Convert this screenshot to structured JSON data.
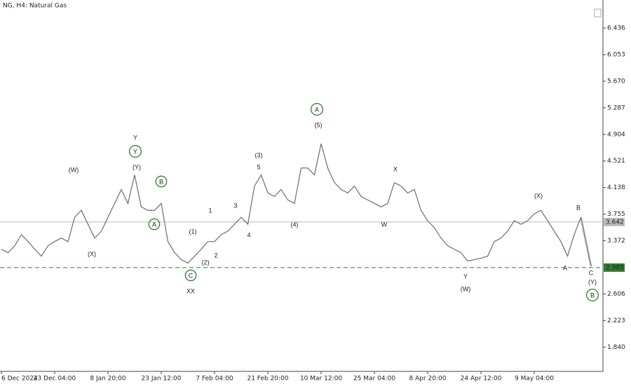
{
  "chart_data": {
    "type": "line",
    "title": "NG, H4:  Natural Gas",
    "color": "#777777",
    "categories": [
      "6 Dec 2024",
      null,
      null,
      null,
      null,
      null,
      null,
      null,
      "23 Dec 04:00",
      null,
      null,
      null,
      null,
      null,
      null,
      null,
      "8 Jan 20:00",
      null,
      null,
      null,
      null,
      null,
      null,
      null,
      "23 Jan 12:00",
      null,
      null,
      null,
      null,
      null,
      null,
      null,
      "7 Feb 04:00",
      null,
      null,
      null,
      null,
      null,
      null,
      null,
      "21 Feb 20:00",
      null,
      null,
      null,
      null,
      null,
      null,
      null,
      "10 Mar 12:00",
      null,
      null,
      null,
      null,
      null,
      null,
      null,
      "25 Mar 04:00",
      null,
      null,
      null,
      null,
      null,
      null,
      null,
      "8 Apr 20:00",
      null,
      null,
      null,
      null,
      null,
      null,
      null,
      "24 Apr 12:00",
      null,
      null,
      null,
      null,
      null,
      null,
      null,
      "9 May 04:00",
      null,
      null,
      null,
      null,
      null,
      null,
      null
    ],
    "values": [
      3.25,
      3.2,
      3.3,
      3.46,
      3.36,
      3.25,
      3.15,
      3.3,
      3.36,
      3.41,
      3.36,
      3.71,
      3.81,
      3.61,
      3.41,
      3.51,
      3.71,
      3.91,
      4.11,
      3.91,
      4.32,
      3.86,
      3.81,
      3.81,
      3.91,
      3.36,
      3.2,
      3.1,
      3.05,
      3.15,
      3.25,
      3.36,
      3.36,
      3.46,
      3.51,
      3.61,
      3.71,
      3.61,
      4.16,
      4.32,
      4.06,
      4.01,
      4.11,
      3.96,
      3.91,
      4.42,
      4.42,
      4.32,
      4.77,
      4.42,
      4.21,
      4.11,
      4.06,
      4.16,
      4.01,
      3.96,
      3.91,
      3.86,
      3.91,
      4.21,
      4.16,
      4.06,
      4.11,
      3.81,
      3.66,
      3.56,
      3.41,
      3.3,
      3.25,
      3.2,
      3.08,
      3.1,
      3.12,
      3.15,
      3.36,
      3.41,
      3.51,
      3.66,
      3.61,
      3.66,
      3.76,
      3.81,
      3.66,
      3.51,
      3.36,
      3.15,
      3.46,
      3.71
    ],
    "ylim": [
      1.49,
      6.84
    ],
    "yticks": [
      {
        "value": 6.436,
        "label": "6.436"
      },
      {
        "value": 6.053,
        "label": "6.053"
      },
      {
        "value": 5.67,
        "label": "5.670"
      },
      {
        "value": 5.287,
        "label": "5.287"
      },
      {
        "value": 4.904,
        "label": "4.904"
      },
      {
        "value": 4.521,
        "label": "4.521"
      },
      {
        "value": 4.138,
        "label": "4.138"
      },
      {
        "value": 3.755,
        "label": "3.755"
      },
      {
        "value": 3.372,
        "label": "3.372"
      },
      {
        "value": 2.606,
        "label": "2.606"
      },
      {
        "value": 2.223,
        "label": "2.223"
      },
      {
        "value": 1.84,
        "label": "1.840"
      }
    ],
    "hlines": [
      {
        "value": 3.642,
        "label": "3.642",
        "color": "#bbbbbb",
        "dashed": false
      },
      {
        "value": 2.985,
        "label": "2.985",
        "color": "#2e7d32",
        "dashed": true
      }
    ],
    "annotations": [
      "(W)",
      "(X)",
      "Y",
      "Y",
      "(Y)",
      "B",
      "A",
      "(1)",
      "1",
      "2",
      "(2)",
      "C",
      "XX",
      "3",
      "4",
      "(3)",
      "5",
      "(4)",
      "A",
      "(5)",
      "X",
      "W",
      "Y",
      "(W)",
      "(X)",
      "B",
      "A",
      "C",
      "(Y)",
      "B"
    ]
  }
}
